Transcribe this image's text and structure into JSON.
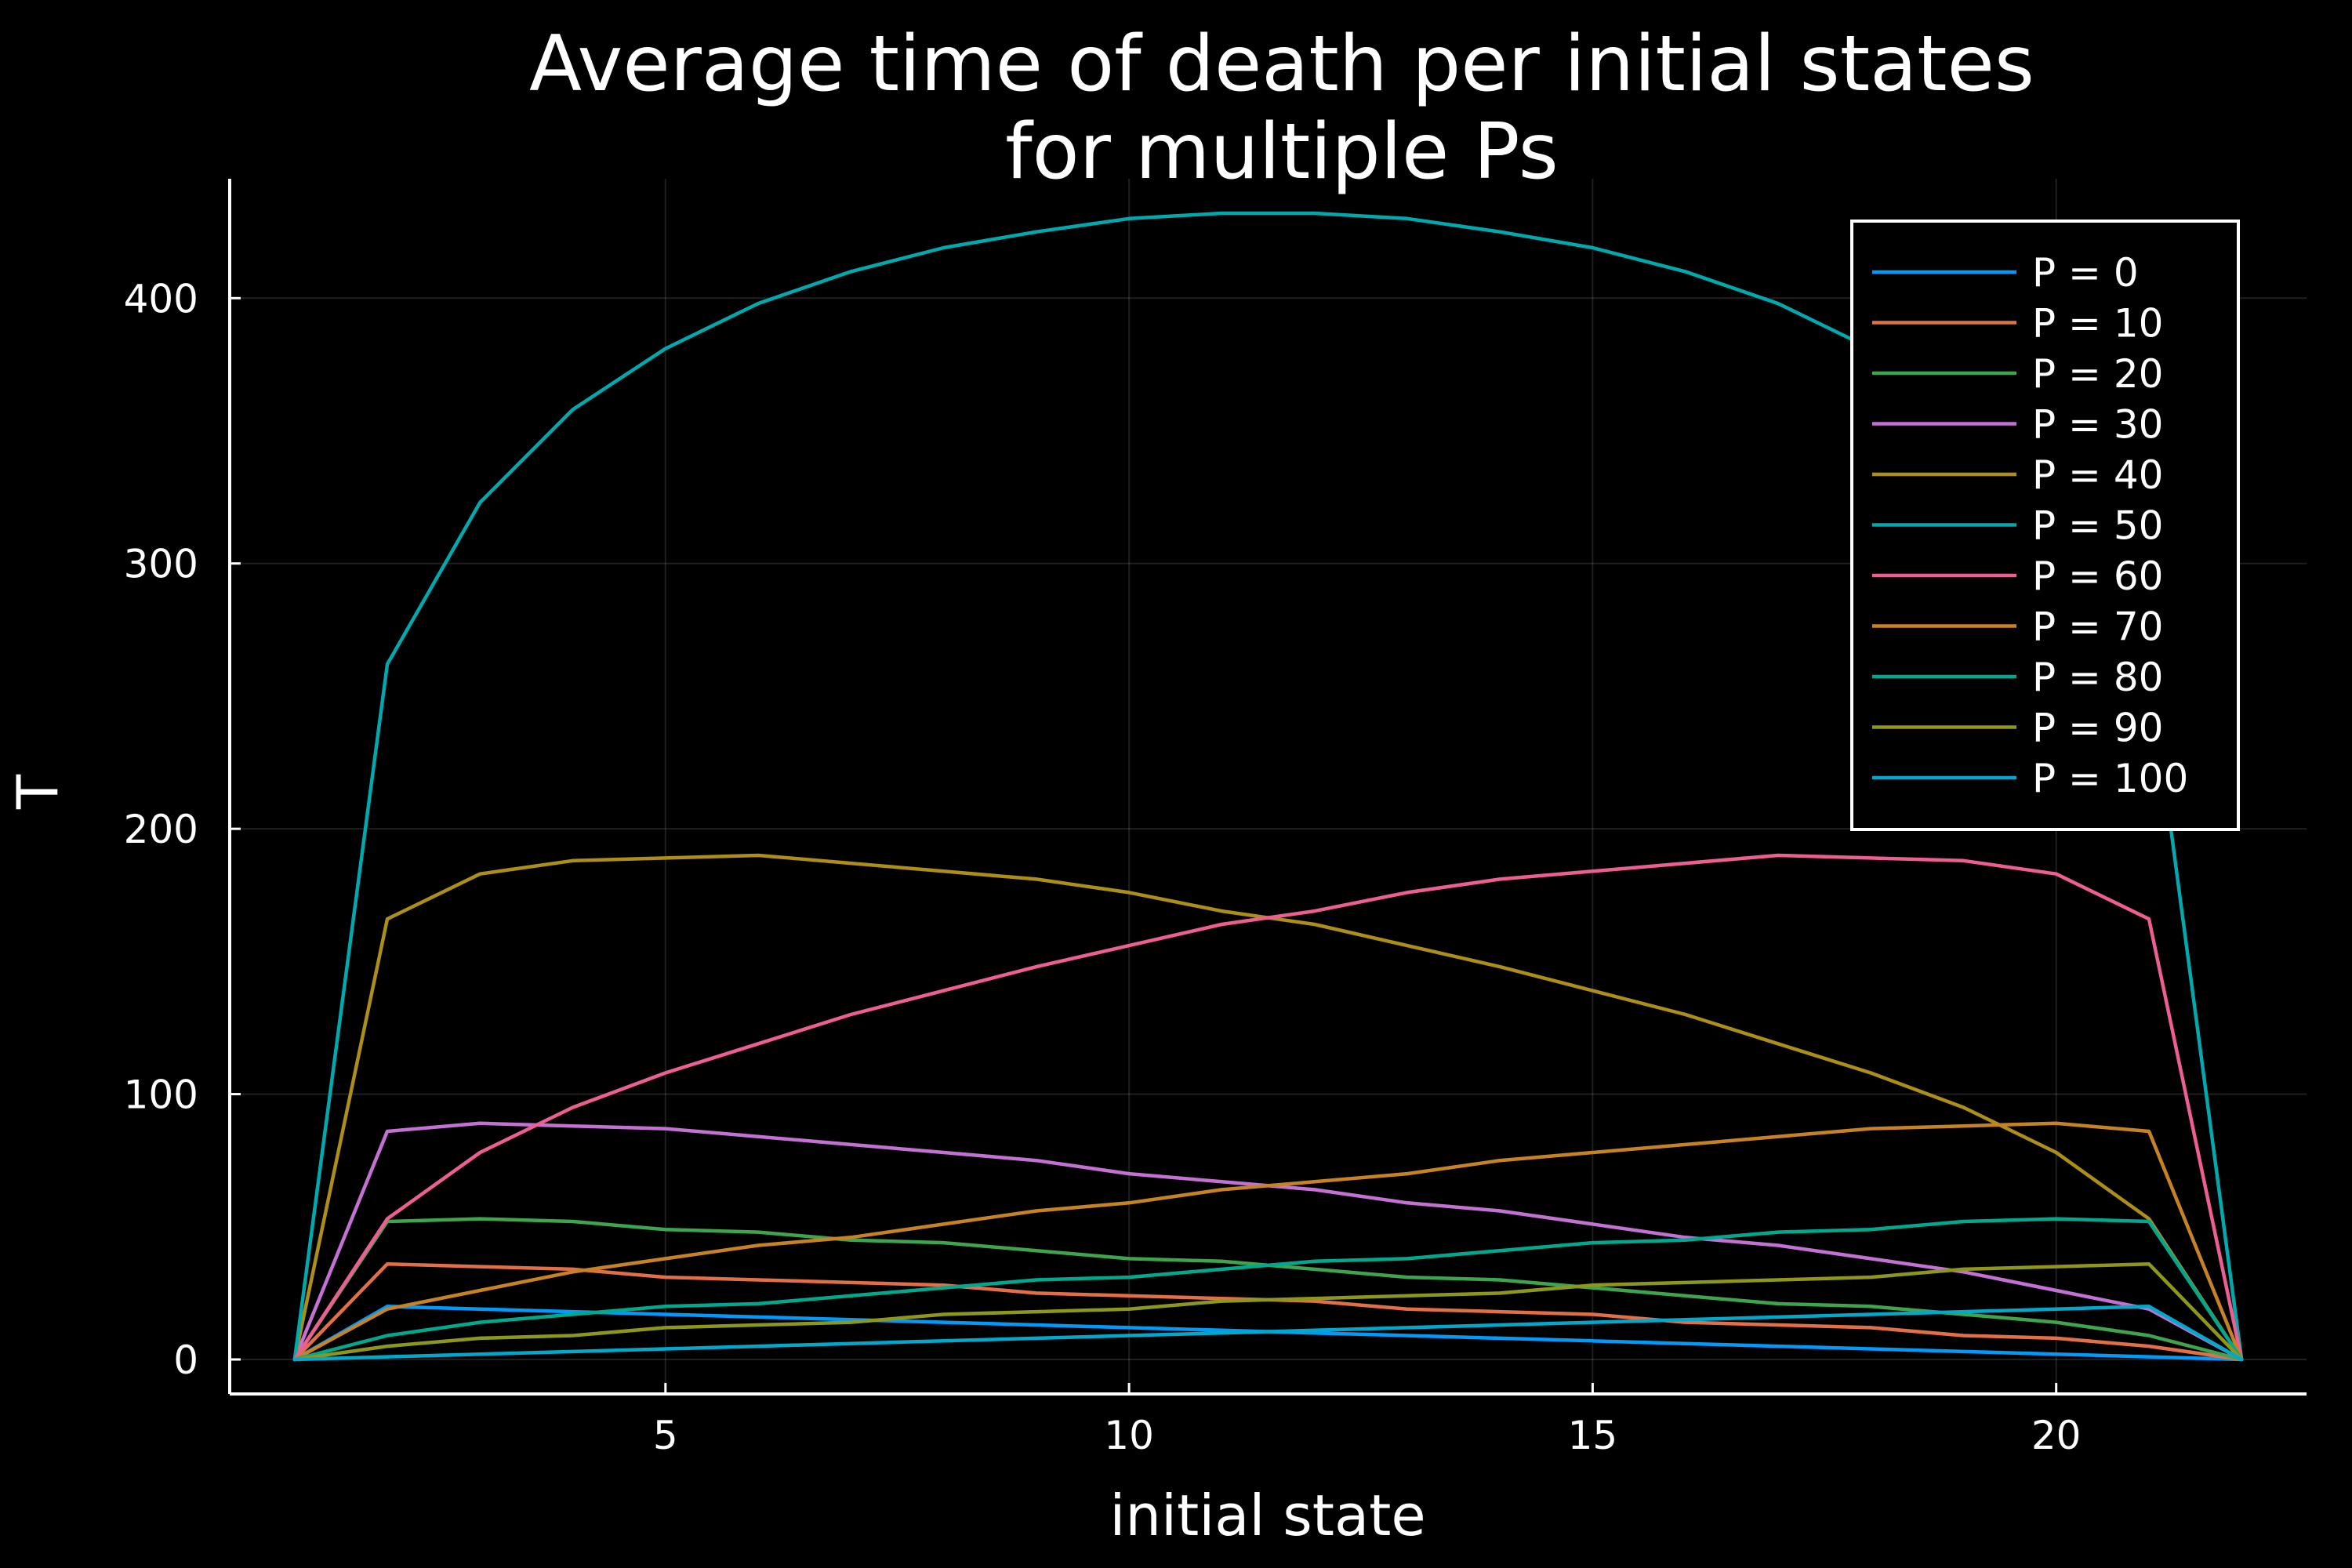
{
  "chart_data": {
    "type": "line",
    "title": [
      "Average time of death per initial states",
      "for multiple Ps"
    ],
    "xlabel": "initial state",
    "ylabel": "T",
    "xlim": [
      0.3,
      22.7
    ],
    "ylim": [
      -13,
      445
    ],
    "xticks": [
      5,
      10,
      15,
      20
    ],
    "yticks": [
      0,
      100,
      200,
      300,
      400
    ],
    "grid": true,
    "legend_position": "top-right",
    "background": "#000000",
    "x": [
      1,
      2,
      3,
      4,
      5,
      6,
      7,
      8,
      9,
      10,
      11,
      12,
      13,
      14,
      15,
      16,
      17,
      18,
      19,
      20,
      21,
      22
    ],
    "series": [
      {
        "name": "P = 0",
        "color": "#009AFA",
        "values": [
          0,
          20,
          19,
          18,
          17,
          16,
          15,
          14,
          13,
          12,
          11,
          10,
          9,
          8,
          7,
          6,
          5,
          4,
          3,
          2,
          1,
          0
        ]
      },
      {
        "name": "P = 10",
        "color": "#E36F47",
        "values": [
          0,
          36,
          35,
          34,
          31,
          30,
          29,
          28,
          25,
          24,
          23,
          22,
          19,
          18,
          17,
          14,
          13,
          12,
          9,
          8,
          5,
          0
        ]
      },
      {
        "name": "P = 20",
        "color": "#3EA44E",
        "values": [
          0,
          52,
          53,
          52,
          49,
          48,
          45,
          44,
          41,
          38,
          37,
          34,
          31,
          30,
          27,
          24,
          21,
          20,
          17,
          14,
          9,
          0
        ]
      },
      {
        "name": "P = 30",
        "color": "#C371D2",
        "values": [
          0,
          86,
          89,
          88,
          87,
          84,
          81,
          78,
          75,
          70,
          67,
          64,
          59,
          56,
          51,
          46,
          43,
          38,
          33,
          26,
          19,
          0
        ]
      },
      {
        "name": "P = 40",
        "color": "#AC8E18",
        "values": [
          0,
          166,
          183,
          188,
          189,
          190,
          187,
          184,
          181,
          176,
          169,
          164,
          156,
          148,
          139,
          130,
          119,
          108,
          95,
          78,
          53,
          0
        ]
      },
      {
        "name": "P = 50",
        "color": "#00A9AD",
        "values": [
          0,
          262,
          323,
          358,
          381,
          398,
          410,
          419,
          425,
          430,
          432,
          432,
          430,
          425,
          419,
          410,
          398,
          381,
          358,
          323,
          262,
          0
        ]
      },
      {
        "name": "P = 60",
        "color": "#ED5E93",
        "values": [
          0,
          53,
          78,
          95,
          108,
          119,
          130,
          139,
          148,
          156,
          164,
          169,
          176,
          181,
          184,
          187,
          190,
          189,
          188,
          183,
          166,
          0
        ]
      },
      {
        "name": "P = 70",
        "color": "#C68225",
        "values": [
          0,
          19,
          26,
          33,
          38,
          43,
          46,
          51,
          56,
          59,
          64,
          67,
          70,
          75,
          78,
          81,
          84,
          87,
          88,
          89,
          86,
          0
        ]
      },
      {
        "name": "P = 80",
        "color": "#00A98D",
        "values": [
          0,
          9,
          14,
          17,
          20,
          21,
          24,
          27,
          30,
          31,
          34,
          37,
          38,
          41,
          44,
          45,
          48,
          49,
          52,
          53,
          52,
          0
        ]
      },
      {
        "name": "P = 90",
        "color": "#8E971D",
        "values": [
          0,
          5,
          8,
          9,
          12,
          13,
          14,
          17,
          18,
          19,
          22,
          23,
          24,
          25,
          28,
          29,
          30,
          31,
          34,
          35,
          36,
          0
        ]
      },
      {
        "name": "P = 100",
        "color": "#00A8CB",
        "values": [
          0,
          1,
          2,
          3,
          4,
          5,
          6,
          7,
          8,
          9,
          10,
          11,
          12,
          13,
          14,
          15,
          16,
          17,
          18,
          19,
          20,
          0
        ]
      }
    ]
  }
}
